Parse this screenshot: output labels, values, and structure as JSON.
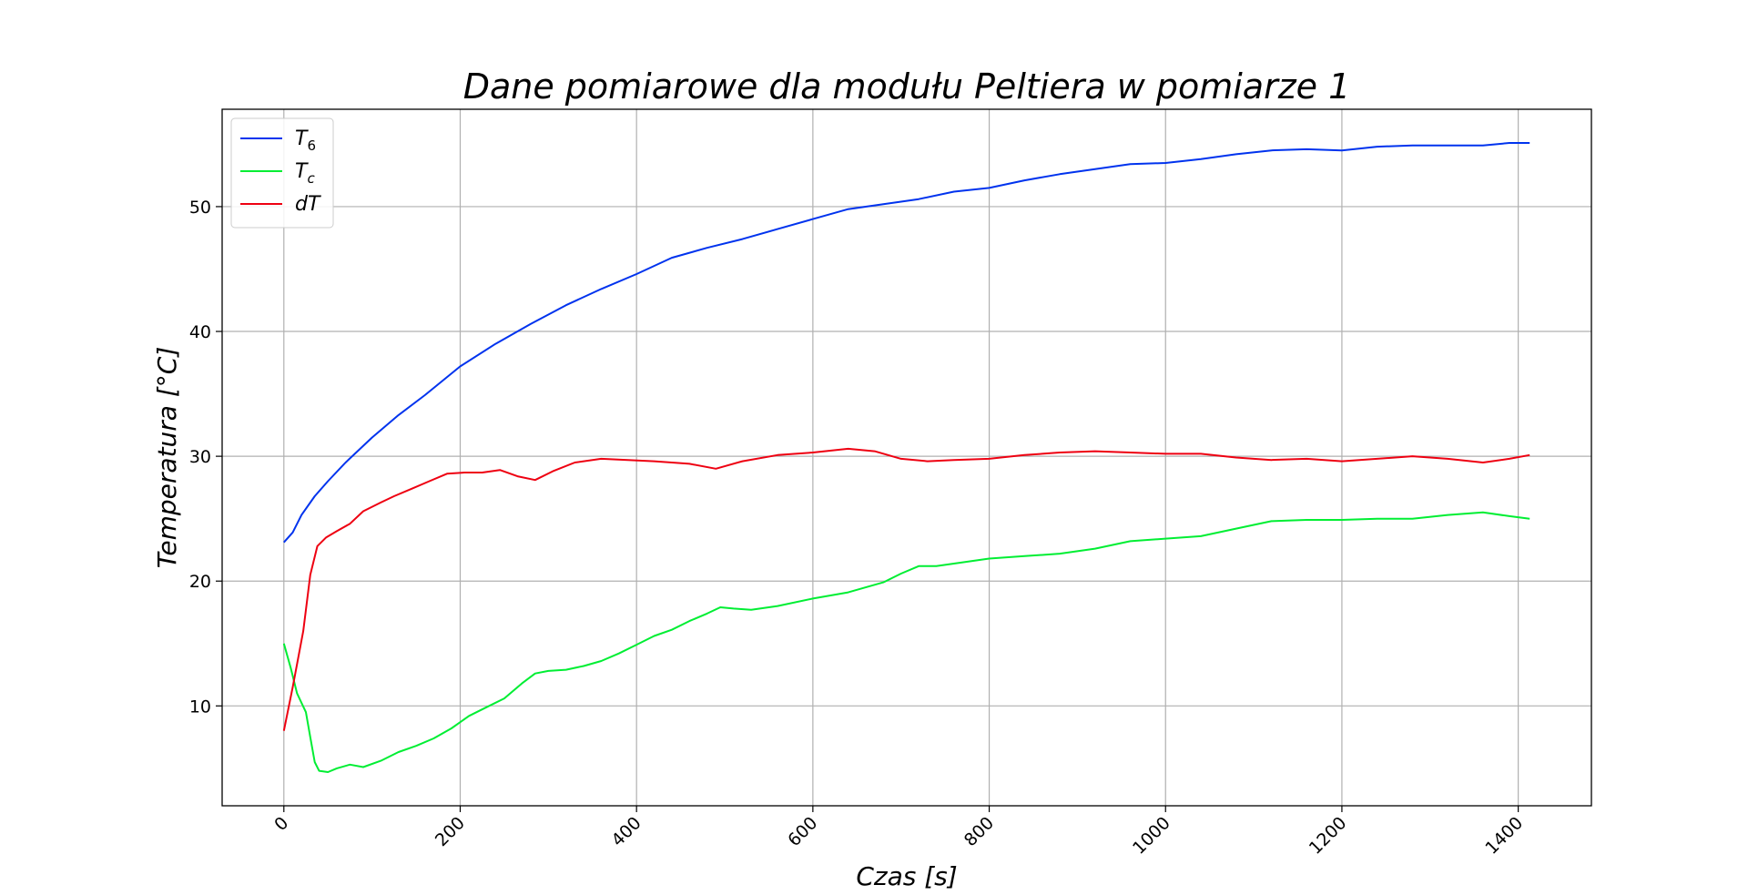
{
  "chart_data": {
    "type": "line",
    "title": "Dane pomiarowe dla modułu Peltiera w pomiarze 1",
    "xlabel": "Czas [s]",
    "ylabel": "Temperatura [°C]",
    "xlim": [
      -70,
      1483
    ],
    "ylim": [
      2.0,
      57.8
    ],
    "xticks": [
      0,
      200,
      400,
      600,
      800,
      1000,
      1200,
      1400
    ],
    "yticks": [
      10,
      20,
      30,
      40,
      50
    ],
    "grid": true,
    "legend_position": "upper-left",
    "series": [
      {
        "name": "T6",
        "legend_main": "T",
        "legend_sub": "6",
        "color": "#0033ee",
        "points": [
          [
            0,
            23.1
          ],
          [
            10,
            23.9
          ],
          [
            20,
            25.3
          ],
          [
            35,
            26.8
          ],
          [
            50,
            28.0
          ],
          [
            70,
            29.5
          ],
          [
            100,
            31.5
          ],
          [
            130,
            33.3
          ],
          [
            160,
            34.9
          ],
          [
            200,
            37.2
          ],
          [
            240,
            39.0
          ],
          [
            280,
            40.6
          ],
          [
            320,
            42.1
          ],
          [
            360,
            43.4
          ],
          [
            400,
            44.6
          ],
          [
            440,
            45.9
          ],
          [
            480,
            46.7
          ],
          [
            520,
            47.4
          ],
          [
            560,
            48.2
          ],
          [
            600,
            49.0
          ],
          [
            640,
            49.8
          ],
          [
            680,
            50.2
          ],
          [
            720,
            50.6
          ],
          [
            760,
            51.2
          ],
          [
            800,
            51.5
          ],
          [
            840,
            52.1
          ],
          [
            880,
            52.6
          ],
          [
            920,
            53.0
          ],
          [
            960,
            53.4
          ],
          [
            1000,
            53.5
          ],
          [
            1040,
            53.8
          ],
          [
            1080,
            54.2
          ],
          [
            1120,
            54.5
          ],
          [
            1160,
            54.6
          ],
          [
            1200,
            54.5
          ],
          [
            1240,
            54.8
          ],
          [
            1280,
            54.9
          ],
          [
            1320,
            54.9
          ],
          [
            1360,
            54.9
          ],
          [
            1390,
            55.1
          ],
          [
            1413,
            55.1
          ]
        ]
      },
      {
        "name": "Tc",
        "legend_main": "T",
        "legend_sub": "c",
        "color": "#00ee33",
        "points": [
          [
            0,
            15.0
          ],
          [
            8,
            13.0
          ],
          [
            15,
            11.0
          ],
          [
            25,
            9.5
          ],
          [
            30,
            7.5
          ],
          [
            35,
            5.5
          ],
          [
            40,
            4.8
          ],
          [
            50,
            4.7
          ],
          [
            60,
            5.0
          ],
          [
            75,
            5.3
          ],
          [
            90,
            5.1
          ],
          [
            110,
            5.6
          ],
          [
            130,
            6.3
          ],
          [
            150,
            6.8
          ],
          [
            170,
            7.4
          ],
          [
            190,
            8.2
          ],
          [
            210,
            9.2
          ],
          [
            230,
            9.9
          ],
          [
            250,
            10.6
          ],
          [
            270,
            11.8
          ],
          [
            285,
            12.6
          ],
          [
            300,
            12.8
          ],
          [
            320,
            12.9
          ],
          [
            340,
            13.2
          ],
          [
            360,
            13.6
          ],
          [
            380,
            14.2
          ],
          [
            400,
            14.9
          ],
          [
            420,
            15.6
          ],
          [
            440,
            16.1
          ],
          [
            460,
            16.8
          ],
          [
            480,
            17.4
          ],
          [
            495,
            17.9
          ],
          [
            510,
            17.8
          ],
          [
            530,
            17.7
          ],
          [
            560,
            18.0
          ],
          [
            600,
            18.6
          ],
          [
            640,
            19.1
          ],
          [
            680,
            19.9
          ],
          [
            700,
            20.6
          ],
          [
            720,
            21.2
          ],
          [
            740,
            21.2
          ],
          [
            760,
            21.4
          ],
          [
            800,
            21.8
          ],
          [
            840,
            22.0
          ],
          [
            880,
            22.2
          ],
          [
            920,
            22.6
          ],
          [
            960,
            23.2
          ],
          [
            1000,
            23.4
          ],
          [
            1040,
            23.6
          ],
          [
            1080,
            24.2
          ],
          [
            1120,
            24.8
          ],
          [
            1160,
            24.9
          ],
          [
            1200,
            24.9
          ],
          [
            1240,
            25.0
          ],
          [
            1280,
            25.0
          ],
          [
            1320,
            25.3
          ],
          [
            1360,
            25.5
          ],
          [
            1390,
            25.2
          ],
          [
            1413,
            25.0
          ]
        ]
      },
      {
        "name": "dT",
        "legend_main": "dT",
        "legend_sub": "",
        "color": "#ee0011",
        "points": [
          [
            0,
            8.0
          ],
          [
            10,
            11.5
          ],
          [
            22,
            16.0
          ],
          [
            30,
            20.5
          ],
          [
            38,
            22.8
          ],
          [
            48,
            23.5
          ],
          [
            60,
            24.0
          ],
          [
            75,
            24.6
          ],
          [
            90,
            25.6
          ],
          [
            110,
            26.3
          ],
          [
            125,
            26.8
          ],
          [
            145,
            27.4
          ],
          [
            165,
            28.0
          ],
          [
            185,
            28.6
          ],
          [
            205,
            28.7
          ],
          [
            225,
            28.7
          ],
          [
            245,
            28.9
          ],
          [
            265,
            28.4
          ],
          [
            285,
            28.1
          ],
          [
            305,
            28.8
          ],
          [
            330,
            29.5
          ],
          [
            360,
            29.8
          ],
          [
            390,
            29.7
          ],
          [
            420,
            29.6
          ],
          [
            460,
            29.4
          ],
          [
            490,
            29.0
          ],
          [
            520,
            29.6
          ],
          [
            560,
            30.1
          ],
          [
            600,
            30.3
          ],
          [
            640,
            30.6
          ],
          [
            670,
            30.4
          ],
          [
            700,
            29.8
          ],
          [
            730,
            29.6
          ],
          [
            760,
            29.7
          ],
          [
            800,
            29.8
          ],
          [
            840,
            30.1
          ],
          [
            880,
            30.3
          ],
          [
            920,
            30.4
          ],
          [
            960,
            30.3
          ],
          [
            1000,
            30.2
          ],
          [
            1040,
            30.2
          ],
          [
            1080,
            29.9
          ],
          [
            1120,
            29.7
          ],
          [
            1160,
            29.8
          ],
          [
            1200,
            29.6
          ],
          [
            1240,
            29.8
          ],
          [
            1280,
            30.0
          ],
          [
            1320,
            29.8
          ],
          [
            1360,
            29.5
          ],
          [
            1390,
            29.8
          ],
          [
            1413,
            30.1
          ]
        ]
      }
    ]
  }
}
